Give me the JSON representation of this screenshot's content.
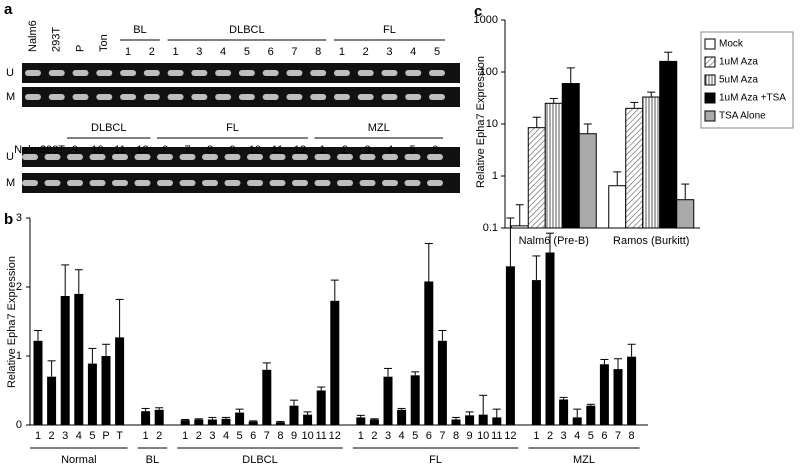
{
  "gel_panel": {
    "letter": "a",
    "upper_gel": {
      "row_labels": [
        "U",
        "M"
      ],
      "lanes": [
        "Nalm6",
        "293T",
        "P",
        "Ton"
      ],
      "groups": [
        {
          "name": "BL",
          "lanes": [
            "1",
            "2"
          ]
        },
        {
          "name": "DLBCL",
          "lanes": [
            "1",
            "3",
            "4",
            "5",
            "6",
            "7",
            "8"
          ]
        },
        {
          "name": "FL",
          "lanes": [
            "1",
            "2",
            "3",
            "4",
            "5"
          ]
        }
      ]
    },
    "lower_gel": {
      "row_labels": [
        "U",
        "M"
      ],
      "lanes": [
        "Nalm6",
        "293T"
      ],
      "groups": [
        {
          "name": "DLBCL",
          "lanes": [
            "9",
            "10",
            "11",
            "12"
          ]
        },
        {
          "name": "FL",
          "lanes": [
            "6",
            "7",
            "8",
            "9",
            "10",
            "11",
            "12"
          ]
        },
        {
          "name": "MZL",
          "lanes": [
            "1",
            "2",
            "3",
            "4",
            "5",
            "6"
          ]
        }
      ]
    }
  },
  "chart_data": [
    {
      "type": "bar",
      "letter": "b",
      "y_label": "Relative Epha7 Expression",
      "ylim": [
        0,
        3
      ],
      "yticks": [
        0,
        1,
        2,
        3
      ],
      "color": "#000000",
      "groups": [
        {
          "name": "Normal",
          "categories": [
            "1",
            "2",
            "3",
            "4",
            "5",
            "P",
            "T"
          ],
          "values": [
            1.22,
            0.7,
            1.87,
            1.9,
            0.89,
            1.0,
            1.27
          ],
          "errors": [
            0.15,
            0.23,
            0.45,
            0.35,
            0.22,
            0.17,
            0.55
          ]
        },
        {
          "name": "BL",
          "categories": [
            "1",
            "2"
          ],
          "values": [
            0.2,
            0.22
          ],
          "errors": [
            0.04,
            0.03
          ]
        },
        {
          "name": "DLBCL",
          "categories": [
            "1",
            "2",
            "3",
            "4",
            "5",
            "6",
            "7",
            "8",
            "9",
            "10",
            "11",
            "12"
          ],
          "values": [
            0.07,
            0.08,
            0.08,
            0.09,
            0.18,
            0.05,
            0.8,
            0.04,
            0.28,
            0.15,
            0.5,
            1.8
          ],
          "errors": [
            0.01,
            0.01,
            0.03,
            0.02,
            0.05,
            0.01,
            0.1,
            0.01,
            0.08,
            0.04,
            0.05,
            0.3
          ]
        },
        {
          "name": "FL",
          "categories": [
            "1",
            "2",
            "3",
            "4",
            "5",
            "6",
            "7",
            "8",
            "9",
            "10",
            "11",
            "12"
          ],
          "values": [
            0.11,
            0.08,
            0.7,
            0.22,
            0.72,
            2.08,
            1.22,
            0.08,
            0.14,
            0.15,
            0.11,
            2.3
          ],
          "errors": [
            0.03,
            0.01,
            0.12,
            0.02,
            0.05,
            0.55,
            0.15,
            0.03,
            0.05,
            0.28,
            0.12,
            0.7
          ]
        },
        {
          "name": "MZL",
          "categories": [
            "1",
            "2",
            "3",
            "4",
            "5",
            "6",
            "7",
            "8"
          ],
          "values": [
            2.1,
            2.5,
            0.37,
            0.11,
            0.28,
            0.88,
            0.81,
            0.99
          ],
          "errors": [
            0.35,
            0.28,
            0.03,
            0.12,
            0.02,
            0.07,
            0.15,
            0.18
          ]
        }
      ]
    },
    {
      "type": "bar",
      "letter": "c",
      "y_label": "Relative Epha7 Expression",
      "log_scale": true,
      "ylim": [
        0.1,
        1000
      ],
      "yticks": [
        0.1,
        1,
        10,
        100,
        1000
      ],
      "legend": "right",
      "categories": [
        "Nalm6 (Pre-B)",
        "Ramos (Burkitt)"
      ],
      "series": [
        {
          "name": "Mock",
          "color": "#ffffff",
          "pattern": "none",
          "values": [
            0.11,
            0.65
          ],
          "errors": [
            0.17,
            0.55
          ]
        },
        {
          "name": "1uM Aza",
          "color": "#ffffff",
          "pattern": "diagonal",
          "values": [
            8.5,
            20
          ],
          "errors": [
            5,
            6
          ]
        },
        {
          "name": "5uM Aza",
          "color": "#ffffff",
          "pattern": "vertical",
          "values": [
            25,
            33
          ],
          "errors": [
            6,
            8
          ]
        },
        {
          "name": "1uM Aza +TSA",
          "color": "#000000",
          "pattern": "none",
          "values": [
            60,
            160
          ],
          "errors": [
            60,
            80
          ]
        },
        {
          "name": "TSA Alone",
          "color": "#aaaaaa",
          "pattern": "none",
          "values": [
            6.5,
            0.35
          ],
          "errors": [
            3.5,
            0.35
          ]
        }
      ]
    }
  ]
}
